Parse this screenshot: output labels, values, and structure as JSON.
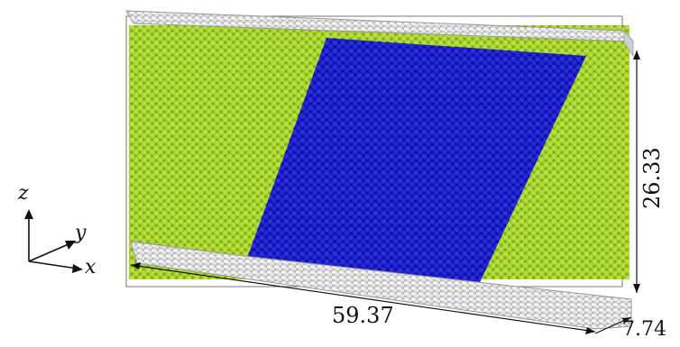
{
  "dimensions": {
    "length": "59.37",
    "height": "26.33",
    "depth": "7.74"
  },
  "axes": {
    "x": "x",
    "y": "y",
    "z": "z"
  },
  "colors": {
    "phase_outer": "#a3d12b",
    "phase_inner": "#1a1ec7",
    "walls": "#cfcfcf"
  }
}
